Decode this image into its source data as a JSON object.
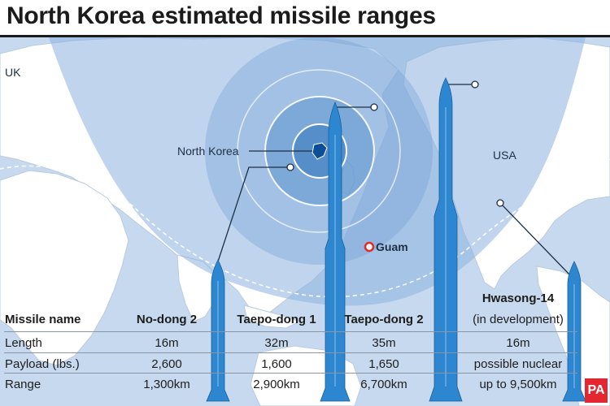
{
  "title": "North Korea estimated missile ranges",
  "map_labels": {
    "uk": "UK",
    "north_korea": "North Korea",
    "usa": "USA",
    "guam": "Guam"
  },
  "table": {
    "row_headers": [
      "Missile name",
      "Length",
      "Payload (lbs.)",
      "Range"
    ],
    "missiles": [
      {
        "name": "No-dong 2",
        "length": "16m",
        "payload": "2,600",
        "range": "1,300km"
      },
      {
        "name": "Taepo-dong 1",
        "length": "32m",
        "payload": "1,600",
        "range": "2,900km"
      },
      {
        "name": "Taepo-dong 2",
        "length": "35m",
        "payload": "1,650",
        "range": "6,700km"
      },
      {
        "name": "Hwasong-14",
        "note": "(in development)",
        "length": "16m",
        "payload": "possible nuclear",
        "range": "up to 9,500km"
      }
    ]
  },
  "logo_text": "PA",
  "colors": {
    "ocean": "#c6d9ee",
    "land": "#ffffff",
    "range_zone": "#8db3de",
    "missile": "#2d87d0",
    "guam_marker": "#e32b26",
    "logo": "#e3262f"
  }
}
